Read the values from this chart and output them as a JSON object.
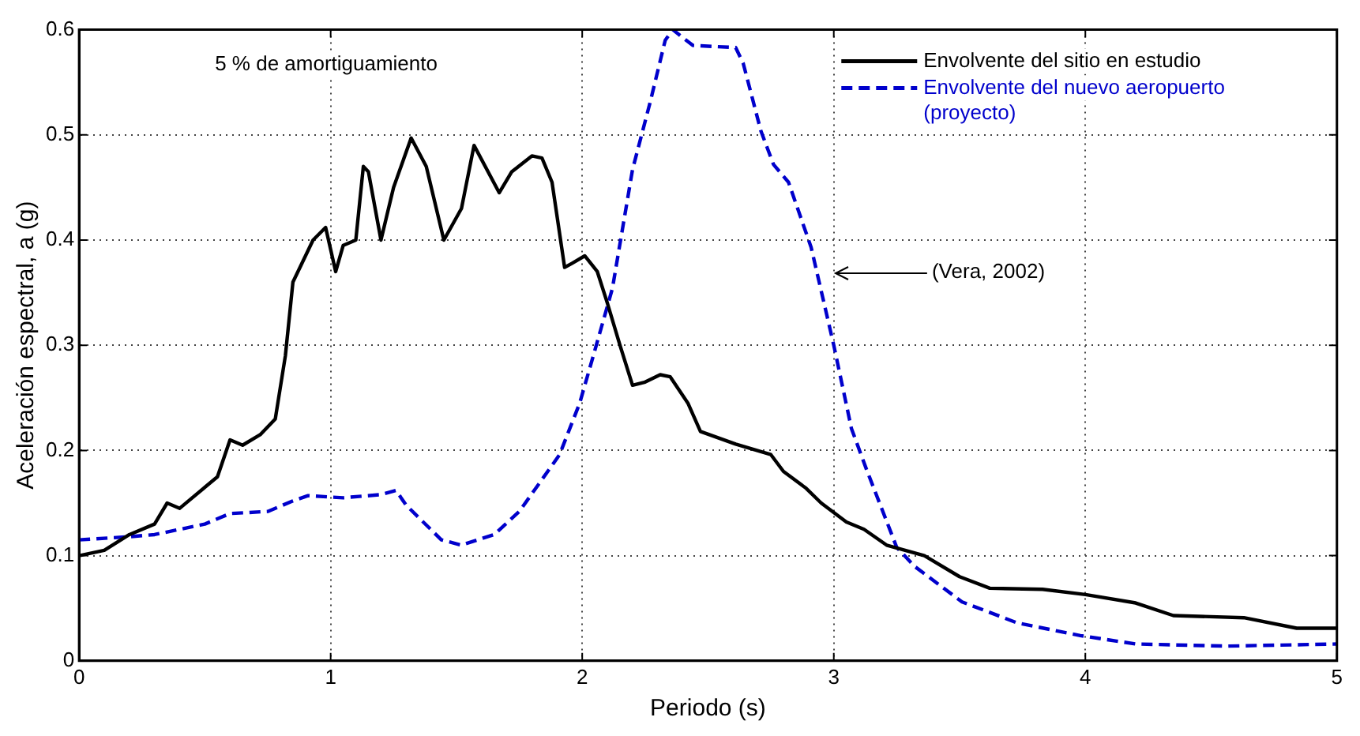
{
  "chart_data": {
    "type": "line",
    "xlabel": "Periodo (s)",
    "ylabel": "Aceleración espectral, a (g)",
    "xlim": [
      0,
      5
    ],
    "xticks": [
      0,
      1,
      2,
      3,
      4,
      5
    ],
    "ylim": [
      0,
      0.6
    ],
    "yticks": [
      0,
      0.1,
      0.2,
      0.3,
      0.4,
      0.5,
      0.6
    ],
    "grid": true,
    "legend": "top right",
    "marker": "none",
    "annotations": [
      "5 % de amortiguamiento",
      "(Vera, 2002)"
    ],
    "series": [
      {
        "name": "Envolvente del sitio en estudio",
        "color": "#000000",
        "line_style": "solid",
        "x": [
          0,
          0.1,
          0.2,
          0.3,
          0.35,
          0.4,
          0.5,
          0.55,
          0.6,
          0.65,
          0.72,
          0.78,
          0.82,
          0.85,
          0.9,
          0.93,
          0.98,
          1.02,
          1.05,
          1.1,
          1.13,
          1.15,
          1.2,
          1.25,
          1.32,
          1.38,
          1.45,
          1.52,
          1.57,
          1.67,
          1.72,
          1.8,
          1.84,
          1.88,
          1.93,
          1.96,
          2.01,
          2.06,
          2.1,
          2.15,
          2.2,
          2.25,
          2.31,
          2.35,
          2.42,
          2.47,
          2.61,
          2.75,
          2.8,
          2.89,
          2.95,
          3.05,
          3.12,
          3.21,
          3.36,
          3.5,
          3.62,
          3.83,
          4.0,
          4.2,
          4.35,
          4.63,
          4.84,
          5
        ],
        "values": [
          0.1,
          0.105,
          0.12,
          0.13,
          0.15,
          0.145,
          0.165,
          0.175,
          0.21,
          0.205,
          0.215,
          0.23,
          0.29,
          0.36,
          0.385,
          0.4,
          0.412,
          0.37,
          0.395,
          0.4,
          0.47,
          0.465,
          0.4,
          0.45,
          0.497,
          0.47,
          0.4,
          0.43,
          0.49,
          0.445,
          0.465,
          0.48,
          0.478,
          0.455,
          0.374,
          0.378,
          0.385,
          0.37,
          0.34,
          0.3,
          0.262,
          0.265,
          0.272,
          0.27,
          0.245,
          0.218,
          0.206,
          0.196,
          0.18,
          0.164,
          0.15,
          0.132,
          0.125,
          0.11,
          0.1,
          0.08,
          0.069,
          0.068,
          0.063,
          0.055,
          0.043,
          0.041,
          0.031,
          0.031
        ]
      },
      {
        "name": "Envolvente del nuevo aeropuerto (proyecto)",
        "color": "#0000cc",
        "line_style": "dashed",
        "x": [
          0,
          0.2,
          0.3,
          0.4,
          0.5,
          0.6,
          0.75,
          0.85,
          0.91,
          1.05,
          1.2,
          1.26,
          1.3,
          1.44,
          1.52,
          1.65,
          1.75,
          1.91,
          1.99,
          2.05,
          2.12,
          2.2,
          2.27,
          2.33,
          2.36,
          2.44,
          2.61,
          2.64,
          2.71,
          2.76,
          2.82,
          2.91,
          3.0,
          3.07,
          3.13,
          3.25,
          3.32,
          3.51,
          3.73,
          3.98,
          4.2,
          4.56,
          5
        ],
        "values": [
          0.115,
          0.118,
          0.12,
          0.125,
          0.13,
          0.14,
          0.142,
          0.152,
          0.157,
          0.155,
          0.158,
          0.162,
          0.148,
          0.115,
          0.11,
          0.12,
          0.142,
          0.196,
          0.245,
          0.295,
          0.354,
          0.467,
          0.531,
          0.59,
          0.6,
          0.585,
          0.583,
          0.568,
          0.504,
          0.472,
          0.455,
          0.393,
          0.3,
          0.221,
          0.182,
          0.108,
          0.09,
          0.056,
          0.036,
          0.024,
          0.016,
          0.014,
          0.016
        ]
      }
    ]
  }
}
